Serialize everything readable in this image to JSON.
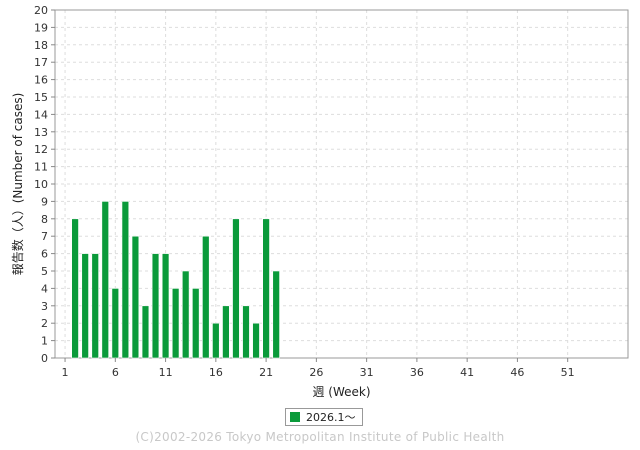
{
  "chart_data": {
    "type": "bar",
    "ylabel": "報告数（人）(Number of cases)",
    "xlabel": "週 (Week)",
    "xlim": [
      0,
      57
    ],
    "ylim": [
      0,
      20
    ],
    "y_ticks": [
      0,
      1,
      2,
      3,
      4,
      5,
      6,
      7,
      8,
      9,
      10,
      11,
      12,
      13,
      14,
      15,
      16,
      17,
      18,
      19,
      20
    ],
    "x_ticks": [
      1,
      6,
      11,
      16,
      21,
      26,
      31,
      36,
      41,
      46,
      51
    ],
    "grid": true,
    "legend_position": "bottom-center",
    "series": [
      {
        "name": "2026.1～",
        "color": "#0a9a3a",
        "weeks": [
          2,
          3,
          4,
          5,
          6,
          7,
          8,
          9,
          10,
          11,
          12,
          13,
          14,
          15,
          16,
          17,
          18,
          19,
          20,
          21,
          22
        ],
        "values": [
          8,
          6,
          6,
          9,
          4,
          9,
          7,
          3,
          6,
          6,
          4,
          5,
          4,
          7,
          2,
          3,
          8,
          3,
          2,
          8,
          5
        ]
      }
    ]
  },
  "footer": {
    "copyright": "(C)2002-2026 Tokyo Metropolitan Institute of Public Health"
  }
}
